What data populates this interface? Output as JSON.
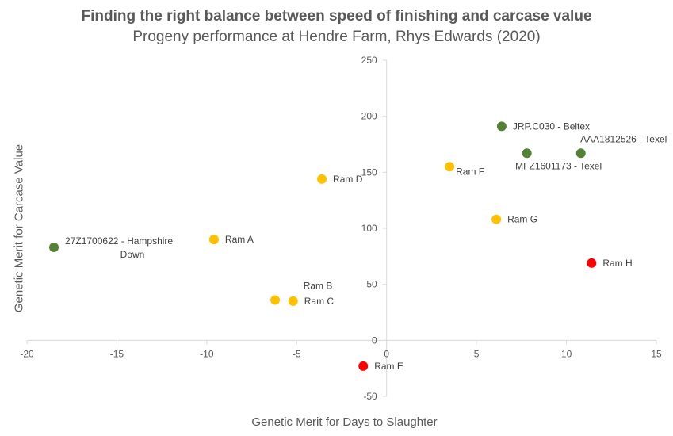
{
  "chart_data": {
    "type": "scatter",
    "title": "Finding the right balance between speed of finishing and carcase value",
    "subtitle": "Progeny performance at Hendre Farm, Rhys Edwards (2020)",
    "xlabel": "Genetic Merit for Days to Slaughter",
    "ylabel": "Genetic Merit for Carcase Value",
    "xlim": [
      -20,
      15
    ],
    "ylim": [
      -50,
      250
    ],
    "x_ticks": [
      -20,
      -15,
      -10,
      -5,
      0,
      5,
      10,
      15
    ],
    "y_ticks": [
      -50,
      0,
      50,
      100,
      150,
      200,
      250
    ],
    "grid": false,
    "legend": "none",
    "colors": {
      "green": "#548235",
      "yellow": "#FFC000",
      "red": "#FF0000",
      "axis": "#D9D9D9",
      "text": "#595959"
    },
    "points": [
      {
        "label": [
          "27Z1700622 - Hampshire",
          "Down"
        ],
        "x": -18.5,
        "y": 83,
        "color": "green",
        "label_pos": "right-two-line"
      },
      {
        "label": [
          "Ram A"
        ],
        "x": -9.6,
        "y": 90,
        "color": "yellow",
        "label_pos": "right"
      },
      {
        "label": [
          "Ram B"
        ],
        "x": -6.2,
        "y": 36,
        "color": "yellow",
        "label_pos": "above"
      },
      {
        "label": [
          "Ram C"
        ],
        "x": -5.2,
        "y": 35,
        "color": "yellow",
        "label_pos": "right"
      },
      {
        "label": [
          "Ram D"
        ],
        "x": -3.6,
        "y": 144,
        "color": "yellow",
        "label_pos": "right"
      },
      {
        "label": [
          "Ram E"
        ],
        "x": -1.3,
        "y": -23,
        "color": "red",
        "label_pos": "right"
      },
      {
        "label": [
          "Ram F"
        ],
        "x": 3.5,
        "y": 155,
        "color": "yellow",
        "label_pos": "below-right"
      },
      {
        "label": [
          "Ram G"
        ],
        "x": 6.1,
        "y": 108,
        "color": "yellow",
        "label_pos": "right"
      },
      {
        "label": [
          "Ram H"
        ],
        "x": 11.4,
        "y": 69,
        "color": "red",
        "label_pos": "right"
      },
      {
        "label": [
          "JRP.C030 - Beltex"
        ],
        "x": 6.4,
        "y": 191,
        "color": "green",
        "label_pos": "right"
      },
      {
        "label": [
          "MFZ1601173 - Texel"
        ],
        "x": 7.8,
        "y": 167,
        "color": "green",
        "label_pos": "below"
      },
      {
        "label": [
          "AAA1812526 - Texel"
        ],
        "x": 10.8,
        "y": 167,
        "color": "green",
        "label_pos": "above"
      }
    ]
  }
}
